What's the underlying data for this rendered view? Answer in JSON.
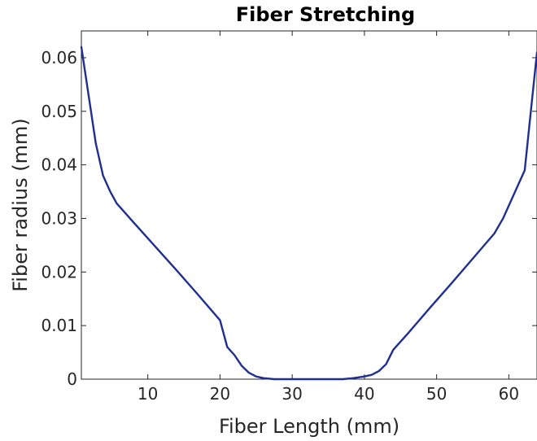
{
  "chart_data": {
    "type": "line",
    "title": "Fiber Stretching",
    "xlabel": "Fiber Length (mm)",
    "ylabel": "Fiber radius (mm)",
    "xlim": [
      0.8,
      63.9
    ],
    "ylim": [
      0,
      0.065
    ],
    "xticks": [
      10,
      20,
      30,
      40,
      50,
      60
    ],
    "yticks": [
      0,
      0.01,
      0.02,
      0.03,
      0.04,
      0.05,
      0.06
    ],
    "ytick_labels": [
      "0",
      "0.01",
      "0.02",
      "0.03",
      "0.04",
      "0.05",
      "0.06"
    ],
    "grid": false,
    "series": [
      {
        "color": "#1f2f8f",
        "x": [
          0.8,
          1.8,
          2.8,
          3.8,
          4.8,
          5.7,
          8.0,
          11.0,
          14.0,
          17.0,
          20.0,
          21.0,
          22.0,
          23.0,
          24.0,
          25.0,
          26.0,
          27.5,
          29.0,
          31.0,
          33.0,
          35.0,
          37.0,
          38.5,
          40.0,
          41.0,
          42.0,
          43.0,
          44.0,
          46.0,
          49.0,
          52.0,
          55.0,
          58.0,
          59.2,
          60.2,
          61.2,
          62.2,
          63.2,
          63.9
        ],
        "y": [
          0.062,
          0.053,
          0.044,
          0.038,
          0.035,
          0.0328,
          0.0293,
          0.0248,
          0.0203,
          0.0157,
          0.011,
          0.006,
          0.0045,
          0.0025,
          0.0012,
          0.0005,
          0.0002,
          0.0,
          0.0,
          0.0,
          0.0,
          0.0,
          0.0,
          0.0002,
          0.0005,
          0.0008,
          0.0015,
          0.0028,
          0.0055,
          0.0085,
          0.0132,
          0.0178,
          0.0225,
          0.0272,
          0.03,
          0.033,
          0.036,
          0.039,
          0.052,
          0.061
        ]
      }
    ]
  }
}
